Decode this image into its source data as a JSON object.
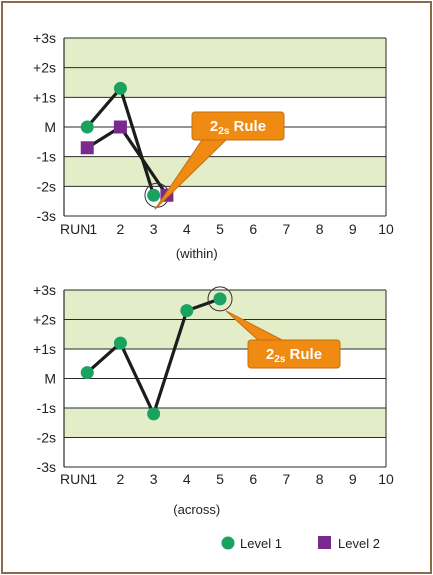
{
  "colors": {
    "frame": "#8b6a45",
    "band": "#e3eec9",
    "grid": "#2a2a2a",
    "line": "#1c1c1c",
    "level1": "#1aa260",
    "level2": "#7a2a8e",
    "callout_fill": "#ef8a12",
    "callout_stroke": "#c96f0c",
    "callout_text": "#ffffff"
  },
  "legend": [
    {
      "label": "Level 1",
      "marker": "circle",
      "color": "#1aa260"
    },
    {
      "label": "Level 2",
      "marker": "square",
      "color": "#7a2a8e"
    }
  ],
  "chart_data": [
    {
      "type": "line",
      "xlabel": "(within)",
      "x_label_prefix": "RUN",
      "x_ticks": [
        "1",
        "2",
        "3",
        "4",
        "5",
        "6",
        "7",
        "8",
        "9",
        "10"
      ],
      "y_ticks": [
        "-3s",
        "-2s",
        "-1s",
        "M",
        "+1s",
        "+2s",
        "+3s"
      ],
      "xlim": [
        0.3,
        10
      ],
      "ylim": [
        -3,
        3
      ],
      "shaded_bands": [
        [
          -2,
          -1
        ],
        [
          1,
          2
        ],
        [
          2,
          3
        ]
      ],
      "grid": true,
      "series": [
        {
          "name": "Level 1",
          "marker": "circle",
          "x": [
            1,
            2,
            3
          ],
          "y": [
            0,
            1.3,
            -2.3
          ]
        },
        {
          "name": "Level 2",
          "marker": "square",
          "x": [
            1,
            2,
            3.4
          ],
          "y": [
            -0.7,
            0,
            -2.3
          ]
        }
      ],
      "annotation": {
        "text_main": "2",
        "text_sub": "2s",
        "text_rule": " Rule",
        "points_to": [
          3.1,
          -2.3
        ]
      }
    },
    {
      "type": "line",
      "xlabel": "(across)",
      "x_label_prefix": "RUN",
      "x_ticks": [
        "1",
        "2",
        "3",
        "4",
        "5",
        "6",
        "7",
        "8",
        "9",
        "10"
      ],
      "y_ticks": [
        "-3s",
        "-2s",
        "-1s",
        "M",
        "+1s",
        "+2s",
        "+3s"
      ],
      "xlim": [
        0.3,
        10
      ],
      "ylim": [
        -3,
        3
      ],
      "shaded_bands": [
        [
          -2,
          -1
        ],
        [
          1,
          2
        ],
        [
          2,
          3
        ]
      ],
      "grid": true,
      "series": [
        {
          "name": "Level 1",
          "marker": "circle",
          "x": [
            1,
            2,
            3,
            4,
            5
          ],
          "y": [
            0.2,
            1.2,
            -1.2,
            2.3,
            2.7
          ]
        }
      ],
      "annotation": {
        "text_main": "2",
        "text_sub": "2s",
        "text_rule": " Rule",
        "points_to": [
          5,
          2.7
        ]
      }
    }
  ]
}
